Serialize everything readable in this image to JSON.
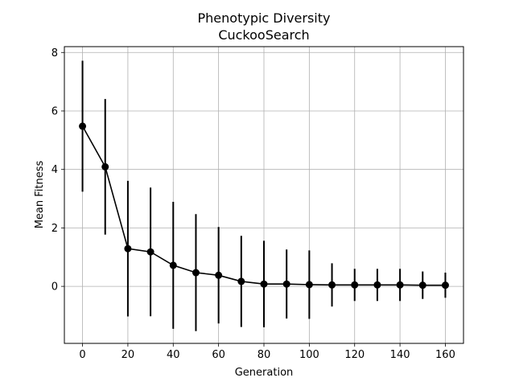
{
  "chart_data": {
    "type": "line",
    "title": "Phenotypic Diversity",
    "subtitle": "CuckooSearch",
    "xlabel": "Generation",
    "ylabel": "Mean Fitness",
    "xlim": [
      -8,
      168
    ],
    "ylim": [
      -1.95,
      8.2
    ],
    "xticks": [
      0,
      20,
      40,
      60,
      80,
      100,
      120,
      140,
      160
    ],
    "yticks": [
      0,
      2,
      4,
      6,
      8
    ],
    "grid": true,
    "series": [
      {
        "color": "#000000",
        "x": [
          0,
          10,
          20,
          30,
          40,
          50,
          60,
          70,
          80,
          90,
          100,
          110,
          120,
          130,
          140,
          150,
          160
        ],
        "y": [
          5.48,
          4.09,
          1.29,
          1.18,
          0.72,
          0.47,
          0.38,
          0.17,
          0.08,
          0.08,
          0.06,
          0.05,
          0.05,
          0.05,
          0.05,
          0.04,
          0.04
        ],
        "err": [
          2.24,
          2.32,
          2.32,
          2.2,
          2.17,
          2.0,
          1.65,
          1.56,
          1.48,
          1.18,
          1.17,
          0.74,
          0.55,
          0.55,
          0.55,
          0.47,
          0.43
        ]
      }
    ]
  }
}
